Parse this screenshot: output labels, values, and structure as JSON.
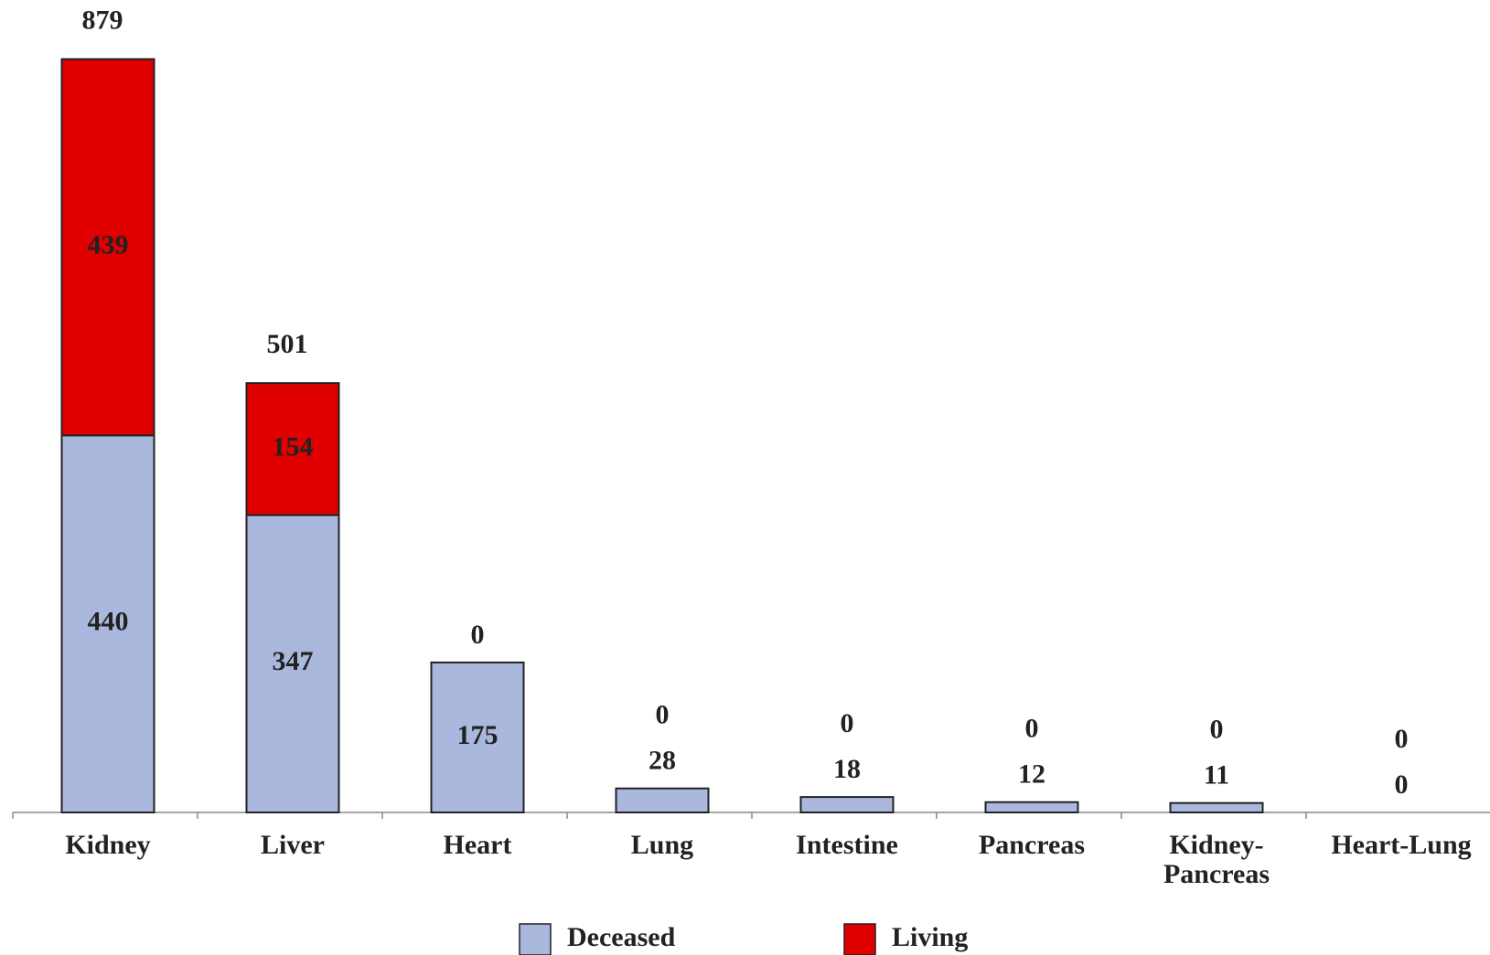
{
  "chart_data": {
    "type": "stacked_bar",
    "categories": [
      "Kidney",
      "Liver",
      "Heart",
      "Lung",
      "Intestine",
      "Pancreas",
      "Kidney-Pancreas",
      "Heart-Lung"
    ],
    "series": [
      {
        "name": "Deceased",
        "color": "#abb8de",
        "values": [
          440,
          347,
          175,
          28,
          18,
          12,
          11,
          0
        ]
      },
      {
        "name": "Living",
        "color": "#e00000",
        "values": [
          439,
          154,
          0,
          0,
          0,
          0,
          0,
          0
        ]
      }
    ],
    "totals": [
      879,
      501,
      null,
      null,
      null,
      null,
      null,
      null
    ],
    "ylim": [
      0,
      948
    ],
    "legend": "bottom"
  }
}
